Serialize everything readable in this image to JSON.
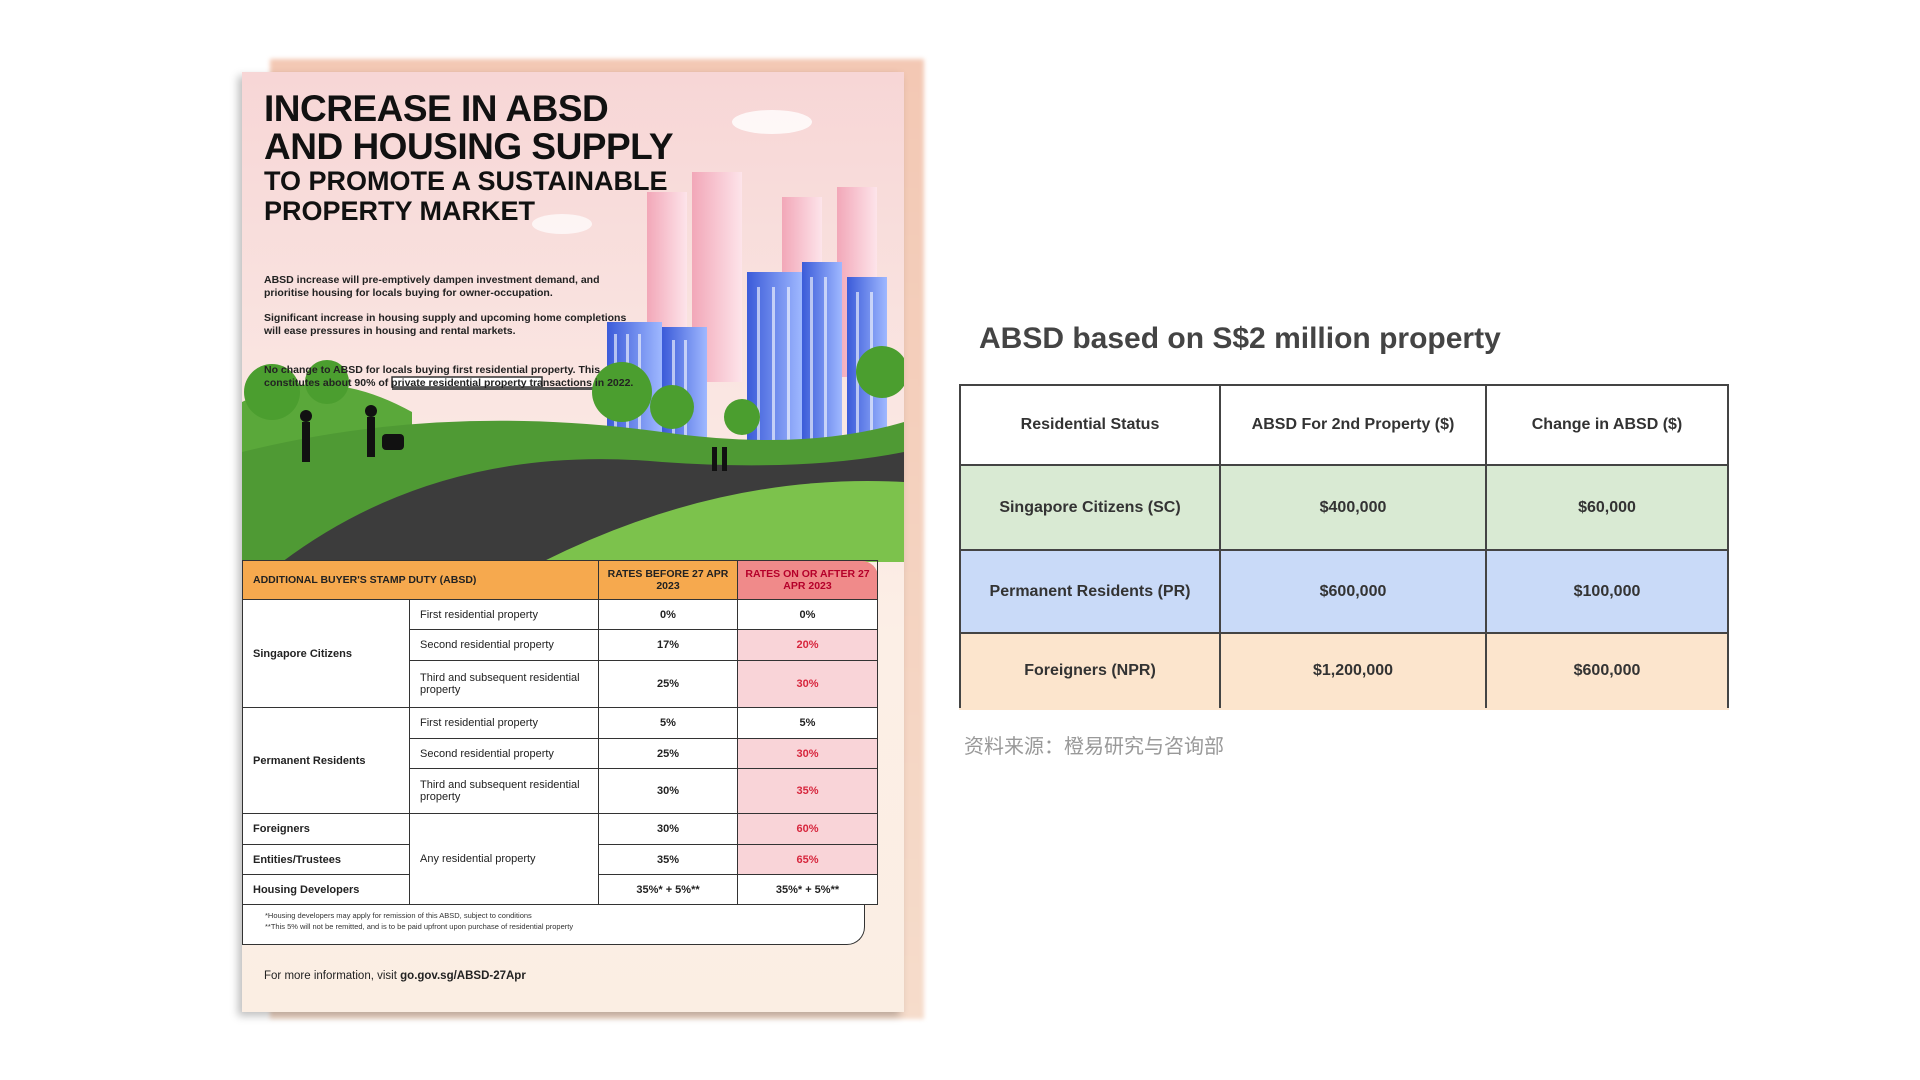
{
  "poster": {
    "title_lines": [
      "INCREASE IN ABSD",
      "AND HOUSING SUPPLY",
      "TO PROMOTE A SUSTAINABLE",
      "PROPERTY MARKET"
    ],
    "paragraphs": [
      "ABSD increase will pre-emptively dampen investment demand, and prioritise housing for locals buying for owner-occupation.",
      "Significant increase in housing supply and upcoming home completions will ease pressures in housing and rental markets.",
      "No change to ABSD for locals buying first residential property. This constitutes about 90% of private residential property transactions in 2022."
    ],
    "table": {
      "headers": [
        "ADDITIONAL BUYER'S STAMP DUTY (ABSD)",
        "RATES BEFORE 27 APR 2023",
        "RATES ON OR AFTER 27 APR 2023"
      ],
      "groups": [
        {
          "buyer": "Singapore Citizens",
          "rows": [
            {
              "property": "First residential property",
              "before": "0%",
              "after": "0%"
            },
            {
              "property": "Second residential property",
              "before": "17%",
              "after": "20%"
            },
            {
              "property": "Third and subsequent residential property",
              "before": "25%",
              "after": "30%"
            }
          ]
        },
        {
          "buyer": "Permanent Residents",
          "rows": [
            {
              "property": "First residential property",
              "before": "5%",
              "after": "5%"
            },
            {
              "property": "Second residential property",
              "before": "25%",
              "after": "30%"
            },
            {
              "property": "Third and subsequent residential property",
              "before": "30%",
              "after": "35%"
            }
          ]
        }
      ],
      "others": {
        "property": "Any residential property",
        "rows": [
          {
            "buyer": "Foreigners",
            "before": "30%",
            "after": "60%"
          },
          {
            "buyer": "Entities/Trustees",
            "before": "35%",
            "after": "65%"
          },
          {
            "buyer": "Housing Developers",
            "before": "35%* + 5%**",
            "after": "35%* + 5%**"
          }
        ]
      }
    },
    "footnotes": [
      "*Housing developers may apply for remission of this ABSD, subject to conditions",
      "**This 5% will not be remitted, and is to be paid upfront upon purchase of residential property"
    ],
    "footer": {
      "text": "For more information, visit",
      "link": "go.gov.sg/ABSD-27Apr"
    }
  },
  "summary": {
    "title": "ABSD based on S$2 million property",
    "table": {
      "headers": [
        "Residential Status",
        "ABSD For 2nd Property ($)",
        "Change in ABSD ($)"
      ],
      "rows": [
        [
          "Singapore Citizens (SC)",
          "$400,000",
          "$60,000"
        ],
        [
          "Permanent Residents (PR)",
          "$600,000",
          "$100,000"
        ],
        [
          "Foreigners (NPR)",
          "$1,200,000",
          "$600,000"
        ]
      ]
    },
    "source": "资料来源：橙易研究与咨询部"
  }
}
